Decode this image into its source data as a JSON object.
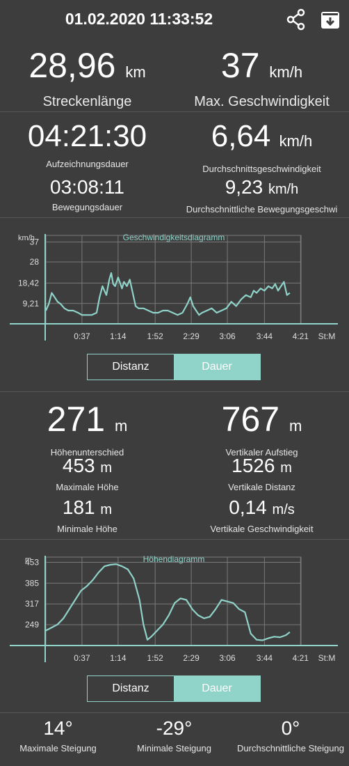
{
  "header": {
    "datetime": "01.02.2020 11:33:52",
    "share_icon": "share-icon",
    "save_icon": "save-icon"
  },
  "summary": {
    "distance": {
      "value": "28,96",
      "unit": "km",
      "label": "Streckenlänge"
    },
    "max_speed": {
      "value": "37",
      "unit": "km/h",
      "label": "Max. Geschwindigkeit"
    }
  },
  "time_stats": {
    "recording_duration": {
      "value": "04:21:30",
      "label": "Aufzeichnungsdauer"
    },
    "avg_speed": {
      "value": "6,64",
      "unit": "km/h",
      "label": "Durchschnittsgeschwindigkeit"
    },
    "moving_duration": {
      "value": "03:08:11",
      "label": "Bewegungsdauer"
    },
    "avg_moving_speed": {
      "value": "9,23",
      "unit": "km/h",
      "label": "Durchschnittliche Bewegungsgeschwi"
    }
  },
  "speed_toggle": {
    "distance": "Distanz",
    "duration": "Dauer",
    "selected": "Dauer"
  },
  "elevation_stats": {
    "height_diff": {
      "value": "271",
      "unit": "m",
      "label": "Höhenunterschied"
    },
    "vertical_ascent": {
      "value": "767",
      "unit": "m",
      "label": "Vertikaler Aufstieg"
    },
    "max_height": {
      "value": "453",
      "unit": "m",
      "label": "Maximale Höhe"
    },
    "vertical_distance": {
      "value": "1526",
      "unit": "m",
      "label": "Vertikale Distanz"
    },
    "min_height": {
      "value": "181",
      "unit": "m",
      "label": "Minimale Höhe"
    },
    "vertical_speed": {
      "value": "0,14",
      "unit": "m/s",
      "label": "Vertikale Geschwindigkeit"
    }
  },
  "elevation_toggle": {
    "distance": "Distanz",
    "duration": "Dauer",
    "selected": "Dauer"
  },
  "grade_stats": {
    "max_grade": {
      "value": "14°",
      "label": "Maximale Steigung"
    },
    "min_grade": {
      "value": "-29°",
      "label": "Minimale Steigung"
    },
    "avg_grade": {
      "value": "0°",
      "label": "Durchschnittliche Steigung"
    }
  },
  "colors": {
    "accent": "#8fd3c9",
    "background": "#3d3d3d",
    "grid": "#7a7a7a"
  },
  "chart_data": [
    {
      "type": "line",
      "title": "Geschwindigkeitsdiagramm",
      "ylabel": "km/h",
      "xlabel": "St:M",
      "ytick_labels": [
        "9,21",
        "18,42",
        "28",
        "37"
      ],
      "yticks": [
        9.21,
        18.42,
        28,
        37
      ],
      "ylim": [
        0,
        40
      ],
      "xtick_labels": [
        "0:37",
        "1:14",
        "1:52",
        "2:29",
        "3:06",
        "3:44",
        "4:21"
      ],
      "xlim": [
        0,
        261.5
      ],
      "x": [
        0,
        3,
        6,
        9,
        12,
        15,
        19,
        23,
        28,
        33,
        37,
        42,
        47,
        52,
        55,
        58,
        60,
        62,
        65,
        67,
        69,
        71,
        74,
        78,
        80,
        83,
        86,
        89,
        92,
        95,
        100,
        105,
        110,
        115,
        120,
        125,
        130,
        135,
        140,
        145,
        148,
        151,
        154,
        157,
        160,
        165,
        170,
        175,
        180,
        185,
        190,
        195,
        200,
        205,
        210,
        213,
        216,
        220,
        224,
        228,
        232,
        235,
        238,
        241,
        244,
        247,
        250
      ],
      "y": [
        6,
        9,
        14,
        12,
        10,
        9,
        7,
        6,
        6,
        5,
        4,
        4,
        4,
        5,
        12,
        17,
        15,
        13,
        20,
        23,
        18,
        17,
        21,
        16,
        19,
        17,
        20,
        14,
        8,
        7,
        7,
        6,
        5,
        5,
        6,
        6,
        5,
        4,
        5,
        9,
        12,
        8,
        6,
        4,
        5,
        6,
        7,
        5,
        6,
        7,
        10,
        8,
        11,
        13,
        12,
        15,
        14,
        16,
        15,
        17,
        16,
        18,
        15,
        17,
        19,
        13,
        14
      ]
    },
    {
      "type": "line",
      "title": "Höhendiagramm",
      "ylabel": "m",
      "xlabel": "St:M",
      "ytick_labels": [
        "249",
        "317",
        "385",
        "453"
      ],
      "yticks": [
        249,
        317,
        385,
        453
      ],
      "ylim": [
        181,
        470
      ],
      "xtick_labels": [
        "0:37",
        "1:14",
        "1:52",
        "2:29",
        "3:06",
        "3:44",
        "4:21"
      ],
      "xlim": [
        0,
        261.5
      ],
      "x": [
        0,
        6,
        12,
        18,
        24,
        30,
        36,
        42,
        48,
        54,
        60,
        66,
        72,
        78,
        84,
        90,
        96,
        100,
        104,
        108,
        114,
        120,
        126,
        132,
        138,
        144,
        150,
        156,
        162,
        168,
        174,
        180,
        186,
        192,
        198,
        204,
        210,
        216,
        222,
        228,
        234,
        240,
        246,
        250
      ],
      "y": [
        230,
        240,
        250,
        270,
        300,
        330,
        360,
        375,
        395,
        420,
        440,
        445,
        447,
        440,
        430,
        400,
        330,
        250,
        200,
        210,
        230,
        250,
        280,
        320,
        335,
        330,
        300,
        280,
        270,
        275,
        300,
        330,
        325,
        320,
        300,
        290,
        220,
        200,
        198,
        205,
        210,
        208,
        215,
        225
      ]
    }
  ]
}
